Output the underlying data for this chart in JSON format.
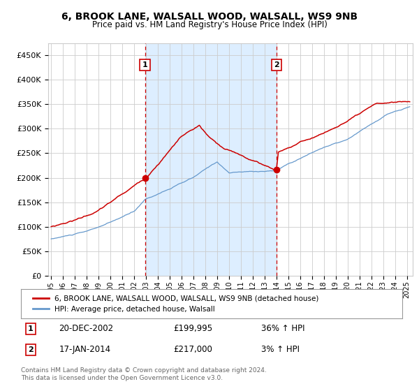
{
  "title": "6, BROOK LANE, WALSALL WOOD, WALSALL, WS9 9NB",
  "subtitle": "Price paid vs. HM Land Registry's House Price Index (HPI)",
  "ylabel_ticks": [
    "£0",
    "£50K",
    "£100K",
    "£150K",
    "£200K",
    "£250K",
    "£300K",
    "£350K",
    "£400K",
    "£450K"
  ],
  "ytick_values": [
    0,
    50000,
    100000,
    150000,
    200000,
    250000,
    300000,
    350000,
    400000,
    450000
  ],
  "ylim": [
    0,
    475000
  ],
  "sale_prices": [
    199995,
    217000
  ],
  "sale_labels": [
    "1",
    "2"
  ],
  "sale_pct": [
    "36% ↑ HPI",
    "3% ↑ HPI"
  ],
  "sale_date_labels": [
    "20-DEC-2002",
    "17-JAN-2014"
  ],
  "legend_house_label": "6, BROOK LANE, WALSALL WOOD, WALSALL, WS9 9NB (detached house)",
  "legend_hpi_label": "HPI: Average price, detached house, Walsall",
  "footnote": "Contains HM Land Registry data © Crown copyright and database right 2024.\nThis data is licensed under the Open Government Licence v3.0.",
  "house_color": "#cc0000",
  "hpi_color": "#6699cc",
  "shade_color": "#ddeeff",
  "sale_vline_color": "#cc0000",
  "sale_dot_color": "#cc0000",
  "grid_color": "#cccccc",
  "background_color": "#ffffff",
  "xlim_start": 1994.75,
  "xlim_end": 2025.5
}
